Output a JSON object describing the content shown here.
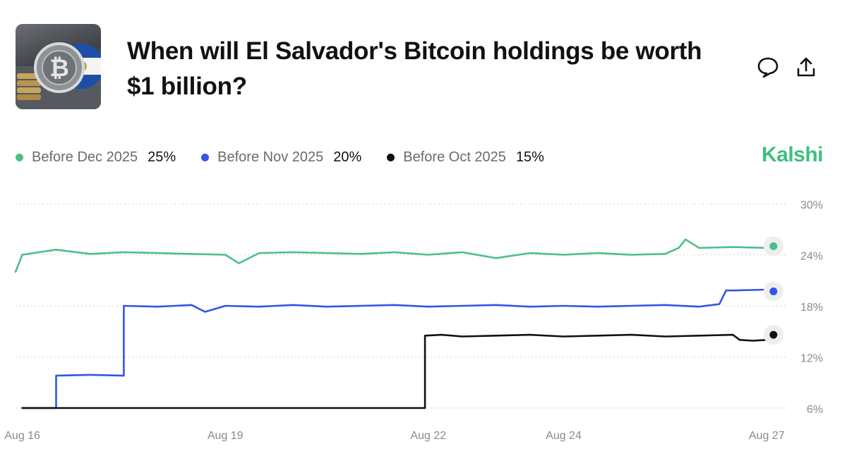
{
  "header": {
    "title": "When will El Salvador's Bitcoin holdings be worth $1 billion?",
    "thumbnail_icon": "bitcoin-flag-thumbnail",
    "comment_icon": "comment-icon",
    "share_icon": "share-icon"
  },
  "brand": {
    "name": "Kalshi",
    "color": "#3fbf7f"
  },
  "legend": [
    {
      "label": "Before Dec 2025",
      "value": "25%",
      "color": "#4cbf88"
    },
    {
      "label": "Before Nov 2025",
      "value": "20%",
      "color": "#3355e6"
    },
    {
      "label": "Before Oct 2025",
      "value": "15%",
      "color": "#111111"
    }
  ],
  "chart_data": {
    "type": "line",
    "y_ticks": [
      "30%",
      "24%",
      "18%",
      "12%",
      "6%"
    ],
    "x_ticks": [
      "Aug 16",
      "Aug 19",
      "Aug 22",
      "Aug 24",
      "Aug 27"
    ],
    "ylim": [
      6,
      30
    ],
    "grid": true,
    "series": [
      {
        "name": "Before Dec 2025",
        "color": "#4cbf88",
        "x": [
          15.9,
          16.0,
          16.5,
          17.0,
          17.5,
          18.0,
          18.5,
          19.0,
          19.2,
          19.5,
          20.0,
          20.5,
          21.0,
          21.5,
          22.0,
          22.5,
          23.0,
          23.5,
          24.0,
          24.5,
          25.0,
          25.5,
          25.7,
          25.8,
          26.0,
          26.5,
          27.0,
          27.1
        ],
        "values": [
          22.0,
          24.0,
          24.6,
          24.1,
          24.3,
          24.2,
          24.1,
          24.0,
          23.0,
          24.2,
          24.3,
          24.2,
          24.1,
          24.3,
          24.0,
          24.3,
          23.6,
          24.2,
          24.0,
          24.2,
          24.0,
          24.1,
          24.8,
          25.8,
          24.8,
          24.9,
          24.8,
          25.0
        ]
      },
      {
        "name": "Before Nov 2025",
        "color": "#3355e6",
        "x": [
          16.0,
          16.5,
          16.5,
          17.0,
          17.5,
          17.5,
          18.0,
          18.5,
          18.7,
          19.0,
          19.5,
          20.0,
          20.5,
          21.0,
          21.5,
          22.0,
          22.5,
          23.0,
          23.5,
          24.0,
          24.5,
          25.0,
          25.5,
          26.0,
          26.3,
          26.4,
          26.5,
          27.0,
          27.1
        ],
        "values": [
          6.0,
          6.0,
          9.8,
          9.9,
          9.8,
          18.0,
          17.9,
          18.1,
          17.3,
          18.0,
          17.9,
          18.1,
          17.9,
          18.0,
          18.1,
          17.9,
          18.0,
          18.1,
          17.9,
          18.0,
          17.9,
          18.0,
          18.1,
          17.9,
          18.2,
          19.8,
          19.8,
          19.9,
          19.7
        ]
      },
      {
        "name": "Before Oct 2025",
        "color": "#111111",
        "x": [
          16.0,
          18.0,
          21.95,
          21.95,
          22.2,
          22.5,
          23.0,
          23.5,
          24.0,
          24.5,
          25.0,
          25.5,
          26.0,
          26.5,
          26.6,
          26.8,
          27.0,
          27.1
        ],
        "values": [
          6.0,
          6.0,
          6.0,
          14.5,
          14.6,
          14.4,
          14.5,
          14.6,
          14.4,
          14.5,
          14.6,
          14.4,
          14.5,
          14.6,
          14.0,
          13.9,
          14.0,
          14.6
        ]
      }
    ]
  }
}
